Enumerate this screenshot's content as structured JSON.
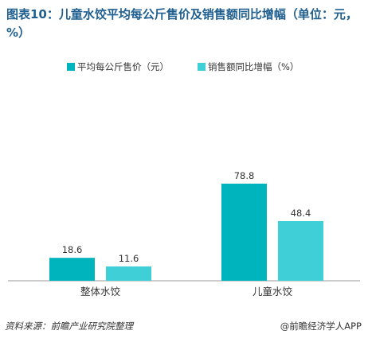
{
  "title": "图表10：儿童水饺平均每公斤售价及销售额同比增幅（单位：元，%）",
  "colors": {
    "series1": "#00b4bd",
    "series2": "#3fcfd7",
    "axis": "#999999",
    "text": "#333333"
  },
  "chart_data": {
    "type": "bar",
    "categories": [
      "整体水饺",
      "儿童水饺"
    ],
    "series": [
      {
        "name": "平均每公斤售价（元）",
        "values": [
          18.6,
          78.8
        ]
      },
      {
        "name": "销售额同比增幅（%）",
        "values": [
          11.6,
          48.4
        ]
      }
    ],
    "ylim": [
      0,
      100
    ],
    "grid": false,
    "legend_position": "top-center"
  },
  "footer": {
    "source": "资料来源：前瞻产业研究院整理",
    "brand": "@前瞻经济学人APP"
  }
}
